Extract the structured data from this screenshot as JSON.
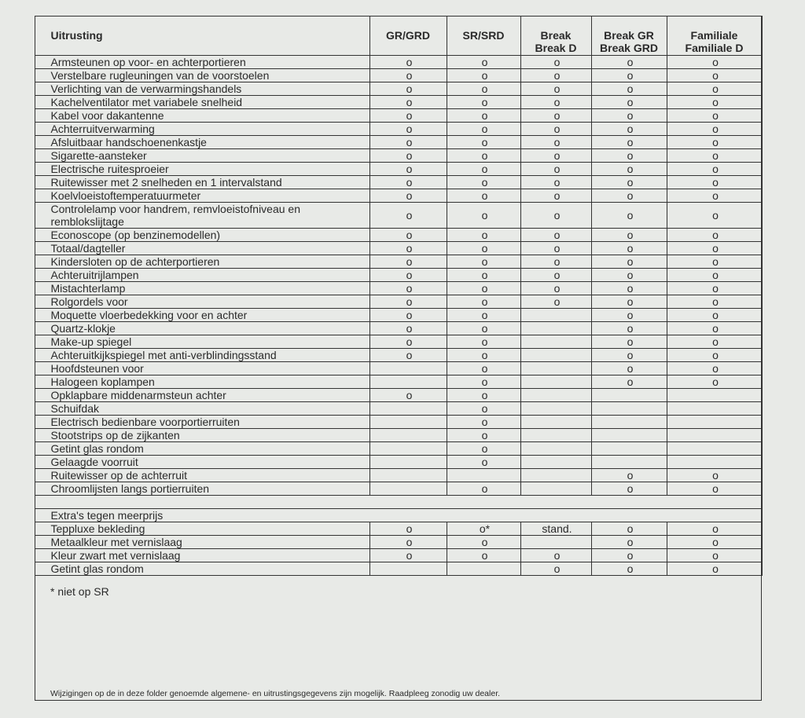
{
  "header": {
    "label": "Uitrusting",
    "columns": [
      [
        "GR/GRD"
      ],
      [
        "SR/SRD"
      ],
      [
        "Break",
        "Break D"
      ],
      [
        "Break GR",
        "Break GRD"
      ],
      [
        "Familiale",
        "Familiale D"
      ]
    ]
  },
  "table": {
    "rows": [
      [
        "Armsteunen op voor- en achterportieren",
        "o",
        "o",
        "o",
        "o",
        "o"
      ],
      [
        "Verstelbare rugleuningen van de voorstoelen",
        "o",
        "o",
        "o",
        "o",
        "o"
      ],
      [
        "Verlichting van de verwarmingshandels",
        "o",
        "o",
        "o",
        "o",
        "o"
      ],
      [
        "Kachelventilator met variabele snelheid",
        "o",
        "o",
        "o",
        "o",
        "o"
      ],
      [
        "Kabel voor dakantenne",
        "o",
        "o",
        "o",
        "o",
        "o"
      ],
      [
        "Achterruitverwarming",
        "o",
        "o",
        "o",
        "o",
        "o"
      ],
      [
        "Afsluitbaar handschoenenkastje",
        "o",
        "o",
        "o",
        "o",
        "o"
      ],
      [
        "Sigarette-aansteker",
        "o",
        "o",
        "o",
        "o",
        "o"
      ],
      [
        "Electrische ruitesproeier",
        "o",
        "o",
        "o",
        "o",
        "o"
      ],
      [
        "Ruitewisser met 2 snelheden en 1 intervalstand",
        "o",
        "o",
        "o",
        "o",
        "o"
      ],
      [
        "Koelvloeistoftemperatuurmeter",
        "o",
        "o",
        "o",
        "o",
        "o"
      ],
      [
        "Controlelamp voor handrem, remvloeistofniveau en remblokslijtage",
        "o",
        "o",
        "o",
        "o",
        "o"
      ],
      [
        "Econoscope (op benzinemodellen)",
        "o",
        "o",
        "o",
        "o",
        "o"
      ],
      [
        "Totaal/dagteller",
        "o",
        "o",
        "o",
        "o",
        "o"
      ],
      [
        "Kindersloten op de achterportieren",
        "o",
        "o",
        "o",
        "o",
        "o"
      ],
      [
        "Achteruitrijlampen",
        "o",
        "o",
        "o",
        "o",
        "o"
      ],
      [
        "Mistachterlamp",
        "o",
        "o",
        "o",
        "o",
        "o"
      ],
      [
        "Rolgordels voor",
        "o",
        "o",
        "o",
        "o",
        "o"
      ],
      [
        "Moquette vloerbedekking voor en achter",
        "o",
        "o",
        null,
        "o",
        "o"
      ],
      [
        "Quartz-klokje",
        "o",
        "o",
        null,
        "o",
        "o"
      ],
      [
        "Make-up spiegel",
        "o",
        "o",
        null,
        "o",
        "o"
      ],
      [
        "Achteruitkijkspiegel met anti-verblindingsstand",
        "o",
        "o",
        null,
        "o",
        "o"
      ],
      [
        "Hoofdsteunen voor",
        null,
        "o",
        null,
        "o",
        "o"
      ],
      [
        "Halogeen koplampen",
        null,
        "o",
        null,
        "o",
        "o"
      ],
      [
        "Opklapbare middenarmsteun achter",
        "o",
        "o",
        null,
        null,
        null
      ],
      [
        "Schuifdak",
        null,
        "o",
        null,
        null,
        null
      ],
      [
        "Electrisch bedienbare voorportierruiten",
        null,
        "o",
        null,
        null,
        null
      ],
      [
        "Stootstrips op de zijkanten",
        null,
        "o",
        null,
        null,
        null
      ],
      [
        "Getint glas rondom",
        null,
        "o",
        null,
        null,
        null
      ],
      [
        "Gelaagde voorruit",
        null,
        "o",
        null,
        null,
        null
      ],
      [
        "Ruitewisser op de achterruit",
        null,
        null,
        null,
        "o",
        "o"
      ],
      [
        "Chroomlijsten langs portierruiten",
        null,
        "o",
        null,
        "o",
        "o"
      ]
    ]
  },
  "extras": {
    "title": "Extra's tegen meerprijs",
    "rows": [
      [
        "Teppluxe bekleding",
        "o",
        "o*",
        "stand.",
        "o",
        "o"
      ],
      [
        "Metaalkleur met vernislaag",
        "o",
        "o",
        null,
        "o",
        "o"
      ],
      [
        "Kleur zwart met vernislaag",
        "o",
        "o",
        "o",
        "o",
        "o"
      ],
      [
        "Getint glas rondom",
        null,
        null,
        "o",
        "o",
        "o"
      ]
    ]
  },
  "footnote": "* niet op SR",
  "disclaimer": "Wijzigingen op de in deze folder genoemde algemene- en uitrustingsgegevens zijn mogelijk. Raadpleeg zonodig uw dealer."
}
